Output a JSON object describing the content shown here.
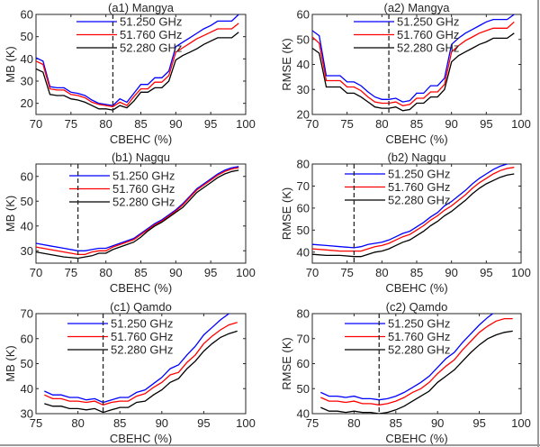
{
  "chart_data": [
    {
      "id": "a1",
      "type": "line",
      "title": "(a1) Mangya",
      "xlabel": "CBEHC (%)",
      "ylabel": "MB (K)",
      "xlim": [
        70,
        100
      ],
      "ylim": [
        15,
        60
      ],
      "xticks": [
        70,
        75,
        80,
        85,
        90,
        95,
        100
      ],
      "yticks": [
        20,
        30,
        40,
        50,
        60
      ],
      "grid": false,
      "legend": "top-center",
      "vline": 81,
      "x": [
        70,
        71,
        72,
        73,
        74,
        75,
        76,
        77,
        78,
        79,
        80,
        81,
        82,
        83,
        84,
        85,
        86,
        87,
        88,
        89,
        90,
        91,
        92,
        93,
        94,
        95,
        96,
        97,
        98,
        99
      ],
      "series": [
        {
          "name": "51.250 GHz",
          "color": "#0000ff",
          "values": [
            40.5,
            39,
            27.5,
            27,
            27,
            25,
            24.5,
            23.5,
            21.5,
            20,
            19.5,
            19,
            22,
            20.5,
            24.5,
            28.5,
            28.5,
            31.5,
            31.5,
            34.5,
            45.5,
            47.5,
            49.5,
            51.5,
            53.5,
            55,
            57,
            57,
            57,
            60
          ]
        },
        {
          "name": "51.760 GHz",
          "color": "#ff0000",
          "values": [
            39,
            37.5,
            26.5,
            26,
            26,
            24,
            23.5,
            22.5,
            20.5,
            19.5,
            19,
            18.5,
            20.5,
            19,
            23,
            26.5,
            26.5,
            29.5,
            29.5,
            32.5,
            43,
            45,
            47,
            49,
            50.5,
            52,
            53.5,
            53.5,
            53.5,
            56
          ]
        },
        {
          "name": "52.280 GHz",
          "color": "#000000",
          "values": [
            35.5,
            34,
            24,
            23.5,
            23.5,
            22,
            21.5,
            20.5,
            19,
            17.5,
            17.5,
            17,
            19,
            18,
            21,
            25,
            25,
            27,
            27,
            30,
            39.5,
            41.5,
            43,
            44.5,
            46.5,
            48,
            49.5,
            49.5,
            49.5,
            52
          ]
        }
      ]
    },
    {
      "id": "a2",
      "type": "line",
      "title": "(a2) Mangya",
      "xlabel": "CBEHC (%)",
      "ylabel": "RMSE (K)",
      "xlim": [
        70,
        100
      ],
      "ylim": [
        20,
        60
      ],
      "xticks": [
        70,
        75,
        80,
        85,
        90,
        95,
        100
      ],
      "yticks": [
        20,
        30,
        40,
        50,
        60
      ],
      "grid": false,
      "legend": "top-center",
      "vline": 81,
      "x": [
        70,
        71,
        72,
        73,
        74,
        75,
        76,
        77,
        78,
        79,
        80,
        81,
        82,
        83,
        84,
        85,
        86,
        87,
        88,
        89,
        90,
        91,
        92,
        93,
        94,
        95,
        96,
        97,
        98,
        99
      ],
      "series": [
        {
          "name": "51.250 GHz",
          "color": "#0000ff",
          "values": [
            53.5,
            51.5,
            35.5,
            35.5,
            35.5,
            33,
            33,
            31.5,
            29,
            27,
            26,
            26,
            26.5,
            25,
            25.5,
            28.5,
            28.5,
            31.5,
            31.5,
            34.5,
            48,
            50.5,
            52.5,
            54,
            55.5,
            57,
            58,
            58,
            58,
            60
          ]
        },
        {
          "name": "51.760 GHz",
          "color": "#ff0000",
          "values": [
            51,
            48.5,
            33.5,
            33.5,
            33.5,
            31,
            31,
            29.5,
            27,
            25,
            24.5,
            24.5,
            25,
            23.5,
            24,
            26.5,
            26.5,
            29,
            29,
            32,
            45,
            47.5,
            49.5,
            51,
            52.5,
            53.5,
            54.5,
            54.5,
            54.5,
            57
          ]
        },
        {
          "name": "52.280 GHz",
          "color": "#000000",
          "values": [
            46.5,
            44.5,
            31,
            31,
            31,
            28.5,
            28.5,
            27,
            25,
            23,
            22.5,
            22.5,
            23,
            21.5,
            22,
            24.5,
            24.5,
            27,
            27,
            30,
            41,
            43.5,
            45,
            46.5,
            48,
            49,
            50.5,
            50.5,
            50.5,
            52.5
          ]
        }
      ]
    },
    {
      "id": "b1",
      "type": "line",
      "title": "(b1) Nagqu",
      "xlabel": "CBEHC (%)",
      "ylabel": "MB (K)",
      "xlim": [
        70,
        100
      ],
      "ylim": [
        25,
        65
      ],
      "xticks": [
        70,
        75,
        80,
        85,
        90,
        95,
        100
      ],
      "yticks": [
        30,
        40,
        50,
        60
      ],
      "grid": false,
      "legend": "top-left",
      "vline": 76,
      "x": [
        70,
        72,
        74,
        76,
        77,
        78,
        79,
        80,
        81,
        82,
        83,
        84,
        85,
        86,
        87,
        88,
        89,
        90,
        91,
        92,
        93,
        94,
        95,
        96,
        97,
        98,
        99
      ],
      "series": [
        {
          "name": "51.250 GHz",
          "color": "#0000ff",
          "values": [
            33,
            32,
            31,
            30,
            30,
            30.5,
            31,
            31,
            32,
            33,
            34,
            35,
            37,
            39,
            41,
            42.5,
            44.5,
            46.5,
            49,
            52,
            55,
            57,
            59,
            61,
            62.5,
            63.5,
            64
          ]
        },
        {
          "name": "51.760 GHz",
          "color": "#ff0000",
          "values": [
            31.5,
            30.5,
            29.5,
            28.5,
            28.5,
            29.5,
            30,
            30,
            31.5,
            32.5,
            33.5,
            34.5,
            36.5,
            38.5,
            40.5,
            42,
            44,
            46,
            48.5,
            51.5,
            54.5,
            56.5,
            58.5,
            60.5,
            62,
            63,
            63.5
          ]
        },
        {
          "name": "52.280 GHz",
          "color": "#000000",
          "values": [
            29.5,
            28.5,
            27.5,
            27,
            27.5,
            28,
            29,
            29,
            30.5,
            31.5,
            32.5,
            33.5,
            35.5,
            38,
            40,
            41.5,
            43.5,
            45.5,
            47.5,
            50.5,
            53.5,
            55.5,
            57.5,
            59.5,
            61,
            62,
            62.5
          ]
        }
      ]
    },
    {
      "id": "b2",
      "type": "line",
      "title": "(b2) Nagqu",
      "xlabel": "CBEHC (%)",
      "ylabel": "RMSE (K)",
      "xlim": [
        70,
        100
      ],
      "ylim": [
        35,
        80
      ],
      "xticks": [
        70,
        75,
        80,
        85,
        90,
        95,
        100
      ],
      "yticks": [
        40,
        50,
        60,
        70,
        80
      ],
      "grid": false,
      "legend": "top-left",
      "vline": 76,
      "x": [
        70,
        72,
        74,
        76,
        77,
        78,
        79,
        80,
        81,
        82,
        83,
        84,
        85,
        86,
        87,
        88,
        89,
        90,
        91,
        92,
        93,
        94,
        95,
        96,
        97,
        98,
        99
      ],
      "series": [
        {
          "name": "51.250 GHz",
          "color": "#0000ff",
          "values": [
            43.5,
            43,
            42.5,
            42,
            42.5,
            43.5,
            44,
            44.5,
            45.5,
            47,
            48.5,
            49.5,
            51.5,
            53.5,
            56,
            58,
            61,
            63,
            65.5,
            68,
            71,
            73.5,
            75.5,
            77.5,
            79,
            80,
            81
          ]
        },
        {
          "name": "51.760 GHz",
          "color": "#ff0000",
          "values": [
            41.5,
            41,
            40.5,
            40.5,
            40.5,
            41.5,
            42.5,
            43,
            44,
            45.5,
            47,
            48,
            50,
            52,
            54.5,
            56.5,
            59,
            61,
            63.5,
            66,
            69,
            71.5,
            73.5,
            75.5,
            77,
            78,
            78.5
          ]
        },
        {
          "name": "52.280 GHz",
          "color": "#000000",
          "values": [
            39,
            38.5,
            38.5,
            38,
            38,
            39,
            40,
            40.5,
            41.5,
            43,
            44.5,
            45.5,
            47.5,
            49.5,
            52,
            54,
            56.5,
            58.5,
            61,
            63.5,
            66.5,
            69,
            71,
            72.5,
            74,
            75,
            75.5
          ]
        }
      ]
    },
    {
      "id": "c1",
      "type": "line",
      "title": "(c1) Qamdo",
      "xlabel": "CBEHC (%)",
      "ylabel": "MB (K)",
      "xlim": [
        75,
        100
      ],
      "ylim": [
        30,
        70
      ],
      "xticks": [
        75,
        80,
        85,
        90,
        95,
        100
      ],
      "yticks": [
        30,
        40,
        50,
        60,
        70
      ],
      "grid": false,
      "legend": "top-left",
      "vline": 83,
      "x": [
        76,
        77,
        78,
        79,
        80,
        81,
        82,
        83,
        84,
        85,
        86,
        87,
        88,
        89,
        90,
        91,
        92,
        93,
        94,
        95,
        96,
        97,
        98,
        99
      ],
      "series": [
        {
          "name": "51.250 GHz",
          "color": "#0000ff",
          "values": [
            39,
            37.5,
            37.5,
            36.5,
            36.5,
            35.5,
            36,
            34.5,
            35.5,
            36.5,
            36.5,
            38.5,
            39.5,
            42,
            44.5,
            48,
            49.5,
            53.5,
            57,
            61.5,
            64.5,
            67.5,
            70,
            71
          ]
        },
        {
          "name": "51.760 GHz",
          "color": "#ff0000",
          "values": [
            37.5,
            36,
            36,
            35,
            35,
            34.5,
            35,
            33.5,
            34.5,
            35,
            35,
            37,
            38,
            40.5,
            42.5,
            45.5,
            46.5,
            50.5,
            53.5,
            58,
            61,
            63.5,
            65.5,
            66.5
          ]
        },
        {
          "name": "52.280 GHz",
          "color": "#000000",
          "values": [
            34,
            33,
            33,
            32,
            32,
            31.5,
            32,
            30.5,
            31.5,
            32.5,
            32.5,
            34.5,
            35,
            37.5,
            39.5,
            42.5,
            44,
            48,
            51,
            55,
            58,
            60.5,
            62,
            63
          ]
        }
      ]
    },
    {
      "id": "c2",
      "type": "line",
      "title": "(c2) Qamdo",
      "xlabel": "CBEHC (%)",
      "ylabel": "RMSE (K)",
      "xlim": [
        75,
        100
      ],
      "ylim": [
        40,
        80
      ],
      "xticks": [
        75,
        80,
        85,
        90,
        95,
        100
      ],
      "yticks": [
        40,
        50,
        60,
        70,
        80
      ],
      "grid": false,
      "legend": "top-left",
      "vline": 83,
      "x": [
        76,
        77,
        78,
        79,
        80,
        81,
        82,
        83,
        84,
        85,
        86,
        87,
        88,
        89,
        90,
        91,
        92,
        93,
        94,
        95,
        96,
        97,
        98,
        99
      ],
      "series": [
        {
          "name": "51.250 GHz",
          "color": "#0000ff",
          "values": [
            48.5,
            47,
            47,
            46.5,
            47,
            46,
            46,
            45.5,
            46,
            47,
            48.5,
            50.5,
            52.5,
            55,
            58.5,
            62,
            64.5,
            68.5,
            72,
            75.5,
            78.5,
            81,
            82,
            83
          ]
        },
        {
          "name": "51.760 GHz",
          "color": "#ff0000",
          "values": [
            46.5,
            45,
            45,
            44.5,
            45,
            44,
            44,
            43.5,
            44,
            45,
            46.5,
            48.5,
            50,
            52.5,
            56,
            59,
            61.5,
            65.5,
            69,
            72.5,
            75,
            77,
            78,
            78
          ]
        },
        {
          "name": "52.280 GHz",
          "color": "#000000",
          "values": [
            42.5,
            41,
            41,
            40.5,
            41,
            40.5,
            40.5,
            40,
            40.5,
            41.5,
            43,
            45,
            47,
            49,
            52.5,
            55,
            57.5,
            61,
            64.5,
            67.5,
            70,
            71.5,
            72.5,
            73
          ]
        }
      ]
    }
  ]
}
